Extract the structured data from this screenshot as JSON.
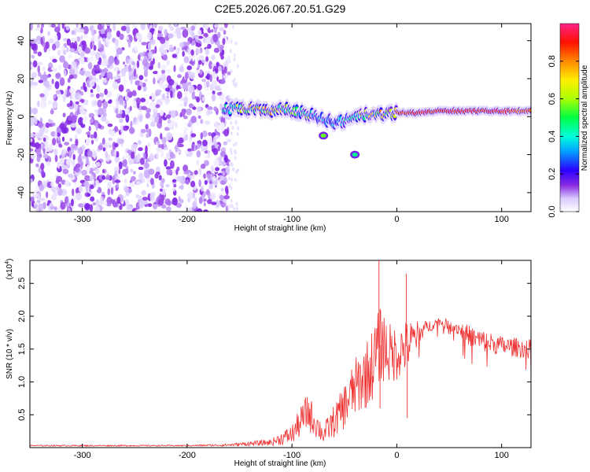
{
  "title": "C2E5.2026.067.20.51.G29",
  "chart_data": [
    {
      "type": "heatmap",
      "xlabel": "Height of straight line (km)",
      "ylabel": "Frequency (Hz)",
      "xlim": [
        -350,
        128
      ],
      "ylim": [
        -50,
        49
      ],
      "xticks": [
        -300,
        -200,
        -100,
        0,
        100
      ],
      "yticks": [
        -40,
        -20,
        0,
        20,
        40
      ],
      "colorbar": {
        "label": "Normalized spectral amplitude",
        "range": [
          0,
          1
        ],
        "ticks": [
          "0.0",
          "0.2",
          "0.4",
          "0.6",
          "0.8"
        ],
        "tick_values": [
          0.0,
          0.2,
          0.4,
          0.6,
          0.8
        ],
        "colors": [
          "#ffffff",
          "#d9c9ff",
          "#8a2be2",
          "#2a00ff",
          "#00a0ff",
          "#00ffdd",
          "#00ff44",
          "#aaff00",
          "#ffee00",
          "#ff8800",
          "#ff1100",
          "#ff2288"
        ]
      },
      "noise_region": {
        "x_range": [
          -350,
          -160
        ],
        "y_range": [
          -50,
          49
        ],
        "amplitude_range": [
          0.02,
          0.2
        ]
      },
      "signal_ridge": [
        {
          "x": -165,
          "y": 4,
          "amp": 0.55
        },
        {
          "x": -150,
          "y": 4,
          "amp": 0.7
        },
        {
          "x": -140,
          "y": 4,
          "amp": 0.85
        },
        {
          "x": -125,
          "y": 3,
          "amp": 0.9
        },
        {
          "x": -110,
          "y": 4,
          "amp": 0.75
        },
        {
          "x": -95,
          "y": 3,
          "amp": 0.6
        },
        {
          "x": -85,
          "y": 1,
          "amp": 0.65
        },
        {
          "x": -75,
          "y": 0,
          "amp": 0.5
        },
        {
          "x": -60,
          "y": -3,
          "amp": 0.45
        },
        {
          "x": -45,
          "y": -2,
          "amp": 0.6
        },
        {
          "x": -30,
          "y": 1,
          "amp": 0.75
        },
        {
          "x": -15,
          "y": 1,
          "amp": 0.85
        },
        {
          "x": 0,
          "y": 2,
          "amp": 0.9
        },
        {
          "x": 20,
          "y": 2,
          "amp": 0.95
        },
        {
          "x": 40,
          "y": 3,
          "amp": 0.95
        },
        {
          "x": 60,
          "y": 3,
          "amp": 0.95
        },
        {
          "x": 80,
          "y": 3,
          "amp": 0.95
        },
        {
          "x": 100,
          "y": 3,
          "amp": 0.95
        },
        {
          "x": 120,
          "y": 3,
          "amp": 0.9
        }
      ],
      "side_features": [
        {
          "x": -70,
          "y": -10,
          "amp": 0.6
        },
        {
          "x": -40,
          "y": -20,
          "amp": 0.5
        }
      ]
    },
    {
      "type": "line",
      "xlabel": "Height of straight line (km)",
      "ylabel": "SNR (10 * v/v)",
      "y_multiplier": "(x10",
      "y_multiplier_exp": "4",
      "y_multiplier_close": ")",
      "xlim": [
        -350,
        128
      ],
      "ylim": [
        0,
        2.85
      ],
      "xticks": [
        -300,
        -200,
        -100,
        0,
        100
      ],
      "yticks": [
        "0.5",
        "1.0",
        "1.5",
        "2.0",
        "2.5"
      ],
      "ytick_values": [
        0.5,
        1.0,
        1.5,
        2.0,
        2.5
      ],
      "color": "#ee3333",
      "series_envelope": [
        {
          "x": -350,
          "y": 0.03,
          "spread": 0.01
        },
        {
          "x": -200,
          "y": 0.03,
          "spread": 0.01
        },
        {
          "x": -160,
          "y": 0.04,
          "spread": 0.02
        },
        {
          "x": -120,
          "y": 0.08,
          "spread": 0.05
        },
        {
          "x": -100,
          "y": 0.2,
          "spread": 0.15
        },
        {
          "x": -85,
          "y": 0.55,
          "spread": 0.3
        },
        {
          "x": -70,
          "y": 0.2,
          "spread": 0.15
        },
        {
          "x": -55,
          "y": 0.5,
          "spread": 0.3
        },
        {
          "x": -40,
          "y": 0.9,
          "spread": 0.45
        },
        {
          "x": -25,
          "y": 1.2,
          "spread": 0.55
        },
        {
          "x": -15,
          "y": 1.6,
          "spread": 0.6
        },
        {
          "x": -5,
          "y": 1.4,
          "spread": 0.45
        },
        {
          "x": 10,
          "y": 1.55,
          "spread": 0.4
        },
        {
          "x": 25,
          "y": 1.8,
          "spread": 0.12
        },
        {
          "x": 40,
          "y": 1.92,
          "spread": 0.06
        },
        {
          "x": 55,
          "y": 1.85,
          "spread": 0.1
        },
        {
          "x": 75,
          "y": 1.65,
          "spread": 0.18
        },
        {
          "x": 100,
          "y": 1.55,
          "spread": 0.15
        },
        {
          "x": 128,
          "y": 1.5,
          "spread": 0.15
        }
      ],
      "spikes": [
        {
          "x": -17,
          "y": 2.85
        },
        {
          "x": 9,
          "y": 2.65
        },
        {
          "x": 10,
          "y": 0.45
        },
        {
          "x": -16,
          "y": 0.6
        }
      ]
    }
  ]
}
